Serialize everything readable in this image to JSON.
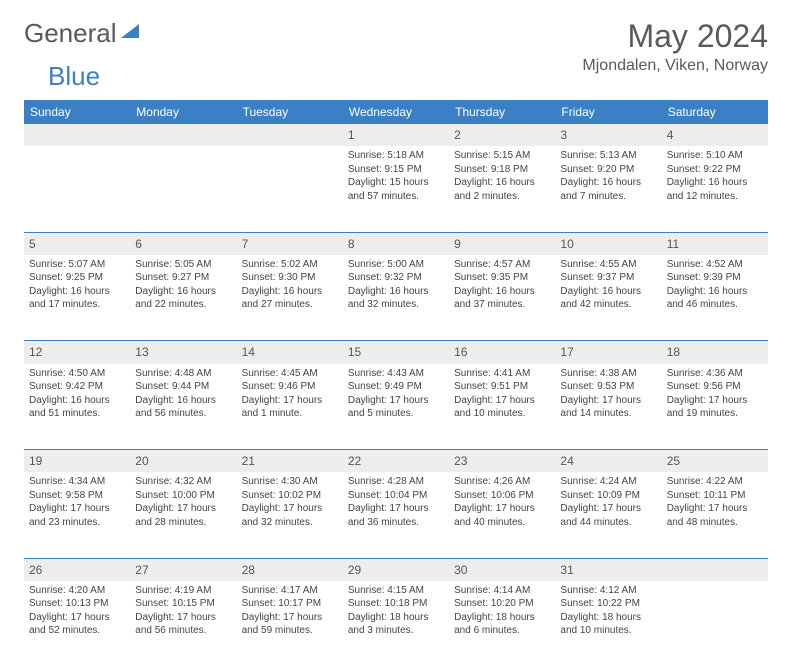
{
  "brand": {
    "name_a": "General",
    "name_b": "Blue"
  },
  "title": "May 2024",
  "location": "Mjondalen, Viken, Norway",
  "colors": {
    "accent": "#3b7fc4",
    "header_bg": "#3b7fc4",
    "header_text": "#ffffff",
    "daynum_bg": "#ededed",
    "text": "#444444",
    "rule": "#3b7fc4"
  },
  "weekdays": [
    "Sunday",
    "Monday",
    "Tuesday",
    "Wednesday",
    "Thursday",
    "Friday",
    "Saturday"
  ],
  "weeks": [
    [
      {
        "n": "",
        "sr": "",
        "ss": "",
        "dl": ""
      },
      {
        "n": "",
        "sr": "",
        "ss": "",
        "dl": ""
      },
      {
        "n": "",
        "sr": "",
        "ss": "",
        "dl": ""
      },
      {
        "n": "1",
        "sr": "Sunrise: 5:18 AM",
        "ss": "Sunset: 9:15 PM",
        "dl": "Daylight: 15 hours and 57 minutes."
      },
      {
        "n": "2",
        "sr": "Sunrise: 5:15 AM",
        "ss": "Sunset: 9:18 PM",
        "dl": "Daylight: 16 hours and 2 minutes."
      },
      {
        "n": "3",
        "sr": "Sunrise: 5:13 AM",
        "ss": "Sunset: 9:20 PM",
        "dl": "Daylight: 16 hours and 7 minutes."
      },
      {
        "n": "4",
        "sr": "Sunrise: 5:10 AM",
        "ss": "Sunset: 9:22 PM",
        "dl": "Daylight: 16 hours and 12 minutes."
      }
    ],
    [
      {
        "n": "5",
        "sr": "Sunrise: 5:07 AM",
        "ss": "Sunset: 9:25 PM",
        "dl": "Daylight: 16 hours and 17 minutes."
      },
      {
        "n": "6",
        "sr": "Sunrise: 5:05 AM",
        "ss": "Sunset: 9:27 PM",
        "dl": "Daylight: 16 hours and 22 minutes."
      },
      {
        "n": "7",
        "sr": "Sunrise: 5:02 AM",
        "ss": "Sunset: 9:30 PM",
        "dl": "Daylight: 16 hours and 27 minutes."
      },
      {
        "n": "8",
        "sr": "Sunrise: 5:00 AM",
        "ss": "Sunset: 9:32 PM",
        "dl": "Daylight: 16 hours and 32 minutes."
      },
      {
        "n": "9",
        "sr": "Sunrise: 4:57 AM",
        "ss": "Sunset: 9:35 PM",
        "dl": "Daylight: 16 hours and 37 minutes."
      },
      {
        "n": "10",
        "sr": "Sunrise: 4:55 AM",
        "ss": "Sunset: 9:37 PM",
        "dl": "Daylight: 16 hours and 42 minutes."
      },
      {
        "n": "11",
        "sr": "Sunrise: 4:52 AM",
        "ss": "Sunset: 9:39 PM",
        "dl": "Daylight: 16 hours and 46 minutes."
      }
    ],
    [
      {
        "n": "12",
        "sr": "Sunrise: 4:50 AM",
        "ss": "Sunset: 9:42 PM",
        "dl": "Daylight: 16 hours and 51 minutes."
      },
      {
        "n": "13",
        "sr": "Sunrise: 4:48 AM",
        "ss": "Sunset: 9:44 PM",
        "dl": "Daylight: 16 hours and 56 minutes."
      },
      {
        "n": "14",
        "sr": "Sunrise: 4:45 AM",
        "ss": "Sunset: 9:46 PM",
        "dl": "Daylight: 17 hours and 1 minute."
      },
      {
        "n": "15",
        "sr": "Sunrise: 4:43 AM",
        "ss": "Sunset: 9:49 PM",
        "dl": "Daylight: 17 hours and 5 minutes."
      },
      {
        "n": "16",
        "sr": "Sunrise: 4:41 AM",
        "ss": "Sunset: 9:51 PM",
        "dl": "Daylight: 17 hours and 10 minutes."
      },
      {
        "n": "17",
        "sr": "Sunrise: 4:38 AM",
        "ss": "Sunset: 9:53 PM",
        "dl": "Daylight: 17 hours and 14 minutes."
      },
      {
        "n": "18",
        "sr": "Sunrise: 4:36 AM",
        "ss": "Sunset: 9:56 PM",
        "dl": "Daylight: 17 hours and 19 minutes."
      }
    ],
    [
      {
        "n": "19",
        "sr": "Sunrise: 4:34 AM",
        "ss": "Sunset: 9:58 PM",
        "dl": "Daylight: 17 hours and 23 minutes."
      },
      {
        "n": "20",
        "sr": "Sunrise: 4:32 AM",
        "ss": "Sunset: 10:00 PM",
        "dl": "Daylight: 17 hours and 28 minutes."
      },
      {
        "n": "21",
        "sr": "Sunrise: 4:30 AM",
        "ss": "Sunset: 10:02 PM",
        "dl": "Daylight: 17 hours and 32 minutes."
      },
      {
        "n": "22",
        "sr": "Sunrise: 4:28 AM",
        "ss": "Sunset: 10:04 PM",
        "dl": "Daylight: 17 hours and 36 minutes."
      },
      {
        "n": "23",
        "sr": "Sunrise: 4:26 AM",
        "ss": "Sunset: 10:06 PM",
        "dl": "Daylight: 17 hours and 40 minutes."
      },
      {
        "n": "24",
        "sr": "Sunrise: 4:24 AM",
        "ss": "Sunset: 10:09 PM",
        "dl": "Daylight: 17 hours and 44 minutes."
      },
      {
        "n": "25",
        "sr": "Sunrise: 4:22 AM",
        "ss": "Sunset: 10:11 PM",
        "dl": "Daylight: 17 hours and 48 minutes."
      }
    ],
    [
      {
        "n": "26",
        "sr": "Sunrise: 4:20 AM",
        "ss": "Sunset: 10:13 PM",
        "dl": "Daylight: 17 hours and 52 minutes."
      },
      {
        "n": "27",
        "sr": "Sunrise: 4:19 AM",
        "ss": "Sunset: 10:15 PM",
        "dl": "Daylight: 17 hours and 56 minutes."
      },
      {
        "n": "28",
        "sr": "Sunrise: 4:17 AM",
        "ss": "Sunset: 10:17 PM",
        "dl": "Daylight: 17 hours and 59 minutes."
      },
      {
        "n": "29",
        "sr": "Sunrise: 4:15 AM",
        "ss": "Sunset: 10:18 PM",
        "dl": "Daylight: 18 hours and 3 minutes."
      },
      {
        "n": "30",
        "sr": "Sunrise: 4:14 AM",
        "ss": "Sunset: 10:20 PM",
        "dl": "Daylight: 18 hours and 6 minutes."
      },
      {
        "n": "31",
        "sr": "Sunrise: 4:12 AM",
        "ss": "Sunset: 10:22 PM",
        "dl": "Daylight: 18 hours and 10 minutes."
      },
      {
        "n": "",
        "sr": "",
        "ss": "",
        "dl": ""
      }
    ]
  ]
}
